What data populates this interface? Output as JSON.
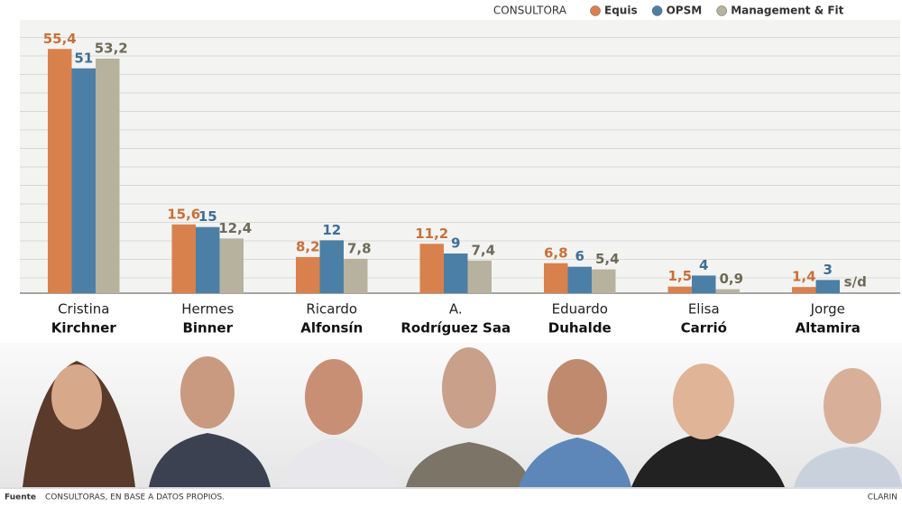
{
  "chart_data": {
    "type": "bar",
    "legend_title": "CONSULTORA",
    "categories": [
      {
        "first": "Cristina",
        "last": "Kirchner"
      },
      {
        "first": "Hermes",
        "last": "Binner"
      },
      {
        "first": "Ricardo",
        "last": "Alfonsín"
      },
      {
        "first": "A.",
        "last": "Rodríguez Saa"
      },
      {
        "first": "Eduardo",
        "last": "Duhalde"
      },
      {
        "first": "Elisa",
        "last": "Carrió"
      },
      {
        "first": "Jorge",
        "last": "Altamira"
      }
    ],
    "series": [
      {
        "name": "Equis",
        "color": "#d9814c",
        "values": [
          55.4,
          15.6,
          8.2,
          11.2,
          6.8,
          1.5,
          1.4
        ],
        "value_labels": [
          "55,4",
          "15,6",
          "8,2",
          "11,2",
          "6,8",
          "1,5",
          "1,4"
        ]
      },
      {
        "name": "OPSM",
        "color": "#4c7fa6",
        "values": [
          51,
          15,
          12,
          9,
          6,
          4,
          3
        ],
        "value_labels": [
          "51",
          "15",
          "12",
          "9",
          "6",
          "4",
          "3"
        ]
      },
      {
        "name": "Management & Fit",
        "color": "#b7b29e",
        "values": [
          53.2,
          12.4,
          7.8,
          7.4,
          5.4,
          0.9,
          null
        ],
        "value_labels": [
          "53,2",
          "12,4",
          "7,8",
          "7,4",
          "5,4",
          "0,9",
          "s/d"
        ]
      }
    ],
    "ylim": [
      0,
      62
    ],
    "source_label": "Fuente",
    "source": "CONSULTORAS, EN BASE A DATOS PROPIOS.",
    "credit": "CLARIN"
  }
}
